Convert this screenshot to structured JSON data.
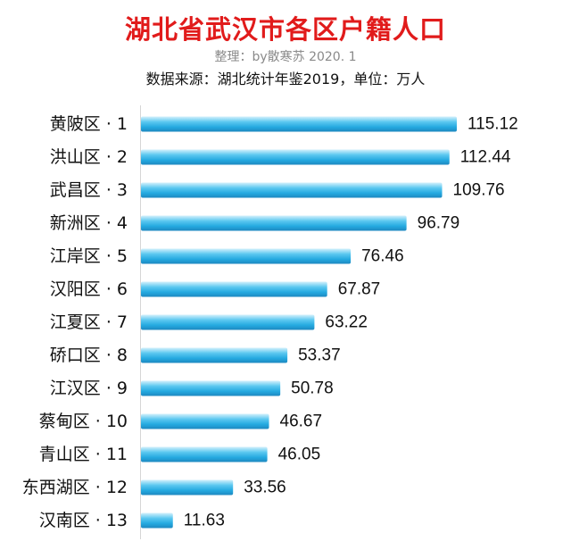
{
  "chart_data": {
    "type": "bar",
    "orientation": "horizontal",
    "title": "湖北省武汉市各区户籍人口",
    "subtitle": "整理：by散寒苏  2020. 1",
    "source_note": "数据来源：湖北统计年鉴2019，单位：万人",
    "categories": [
      "黄陂区 · 1",
      "洪山区 · 2",
      "武昌区 · 3",
      "新洲区 · 4",
      "江岸区 · 5",
      "汉阳区 · 6",
      "江夏区 · 7",
      "硚口区 · 8",
      "江汉区 · 9",
      "蔡甸区 · 10",
      "青山区 · 11",
      "东西湖区 · 12",
      "汉南区 · 13"
    ],
    "values": [
      115.12,
      112.44,
      109.76,
      96.79,
      76.46,
      67.87,
      63.22,
      53.37,
      50.78,
      46.67,
      46.05,
      33.56,
      11.63
    ],
    "value_labels": [
      "115.12",
      "112.44",
      "109.76",
      "96.79",
      "76.46",
      "67.87",
      "63.22",
      "53.37",
      "50.78",
      "46.67",
      "46.05",
      "33.56",
      "11.63"
    ],
    "xlim": [
      0,
      115.12
    ],
    "bar_color": "#2ab2e6",
    "grid": false,
    "legend": "none"
  }
}
